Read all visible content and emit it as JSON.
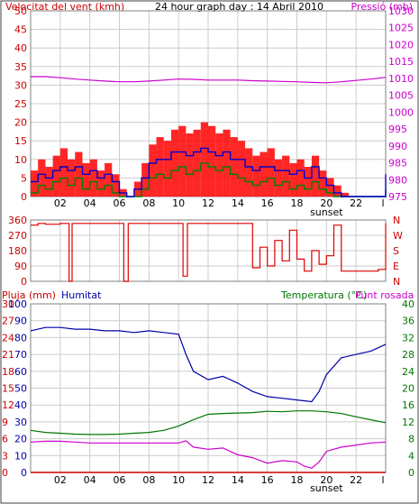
{
  "colors": {
    "wind": "#dd0000",
    "gust_bars": "#ff0000",
    "wind_avg": "#0000cc",
    "wind_min": "#008000",
    "pressure": "#cc00cc",
    "direction": "#dd0000",
    "rain": "#cc0000",
    "humidity": "#0000aa",
    "temperature": "#007700",
    "dewpoint": "#cc00cc",
    "grid": "#cccccc",
    "frame": "#808080"
  },
  "x_ticks": [
    "02",
    "04",
    "06",
    "08",
    "10",
    "12",
    "14",
    "16",
    "18",
    "20",
    "22",
    "l"
  ],
  "sunset_label": "sunset",
  "chart_data": [
    {
      "type": "line",
      "title": "24 hour graph day : 14 Abril 2010",
      "ylabel": "Velocitat del vent (kmh)",
      "ylabel_right": "Pressió (mb)",
      "ylim": [
        0,
        50
      ],
      "yticks": [
        "0",
        "5",
        "10",
        "15",
        "20",
        "25",
        "30",
        "35",
        "40",
        "45",
        "50"
      ],
      "ylim_right": [
        975,
        1030
      ],
      "yticks_right": [
        "975",
        "980",
        "985",
        "990",
        "995",
        "1000",
        "1005",
        "1010",
        "1015",
        "1020",
        "1025",
        "1030"
      ],
      "xlim": [
        0,
        24
      ],
      "grid": true,
      "series": [
        {
          "key": "gust",
          "x": [
            0,
            0.5,
            1,
            1.5,
            2,
            2.5,
            3,
            3.5,
            4,
            4.5,
            5,
            5.5,
            6,
            6.5,
            7,
            7.5,
            8,
            8.5,
            9,
            9.5,
            10,
            10.5,
            11,
            11.5,
            12,
            12.5,
            13,
            13.5,
            14,
            14.5,
            15,
            15.5,
            16,
            16.5,
            17,
            17.5,
            18,
            18.5,
            19,
            19.5,
            20,
            20.5,
            21,
            21.5,
            22,
            22.5,
            23,
            23.5,
            24
          ],
          "y": [
            7,
            10,
            8,
            11,
            13,
            10,
            12,
            9,
            10,
            7,
            9,
            6,
            2,
            0,
            4,
            9,
            14,
            16,
            15,
            18,
            19,
            17,
            18,
            20,
            19,
            17,
            18,
            16,
            15,
            13,
            11,
            12,
            13,
            10,
            11,
            9,
            10,
            8,
            11,
            7,
            5,
            3,
            1,
            0,
            0,
            0,
            0,
            0,
            10
          ]
        },
        {
          "key": "average",
          "x": [
            0,
            0.5,
            1,
            1.5,
            2,
            2.5,
            3,
            3.5,
            4,
            4.5,
            5,
            5.5,
            6,
            6.5,
            7,
            7.5,
            8,
            8.5,
            9,
            9.5,
            10,
            10.5,
            11,
            11.5,
            12,
            12.5,
            13,
            13.5,
            14,
            14.5,
            15,
            15.5,
            16,
            16.5,
            17,
            17.5,
            18,
            18.5,
            19,
            19.5,
            20,
            20.5,
            21,
            21.5,
            22,
            22.5,
            23,
            23.5,
            24
          ],
          "y": [
            4,
            6,
            5,
            7,
            8,
            7,
            8,
            6,
            7,
            5,
            6,
            4,
            1,
            0,
            2,
            5,
            9,
            10,
            10,
            12,
            12,
            11,
            12,
            13,
            12,
            11,
            12,
            10,
            10,
            8,
            7,
            8,
            8,
            7,
            7,
            6,
            7,
            5,
            8,
            5,
            3,
            1,
            0,
            0,
            0,
            0,
            0,
            0,
            6
          ]
        },
        {
          "key": "minimum",
          "x": [
            0,
            0.5,
            1,
            1.5,
            2,
            2.5,
            3,
            3.5,
            4,
            4.5,
            5,
            5.5,
            6,
            6.5,
            7,
            7.5,
            8,
            8.5,
            9,
            9.5,
            10,
            10.5,
            11,
            11.5,
            12,
            12.5,
            13,
            13.5,
            14,
            14.5,
            15,
            15.5,
            16,
            16.5,
            17,
            17.5,
            18,
            18.5,
            19,
            19.5,
            20,
            20.5,
            21,
            21.5,
            22,
            22.5,
            23,
            23.5,
            24
          ],
          "y": [
            1,
            3,
            2,
            4,
            5,
            3,
            5,
            2,
            4,
            2,
            3,
            1,
            0,
            0,
            0,
            2,
            5,
            6,
            5,
            7,
            8,
            6,
            7,
            9,
            8,
            7,
            8,
            6,
            5,
            4,
            3,
            4,
            5,
            3,
            4,
            2,
            3,
            2,
            4,
            2,
            1,
            0,
            0,
            0,
            0,
            0,
            0,
            0,
            2
          ]
        },
        {
          "key": "pressure",
          "axis": "right",
          "x": [
            0,
            1,
            2,
            3,
            4,
            5,
            6,
            7,
            8,
            9,
            10,
            11,
            12,
            13,
            14,
            15,
            16,
            17,
            18,
            19,
            20,
            21,
            22,
            23,
            24
          ],
          "y": [
            1010.5,
            1010.5,
            1010.2,
            1009.8,
            1009.5,
            1009.2,
            1009,
            1009,
            1009.2,
            1009.5,
            1009.8,
            1009.7,
            1009.5,
            1009.5,
            1009.5,
            1009.3,
            1009.2,
            1009.1,
            1009,
            1008.8,
            1008.7,
            1009,
            1009.4,
            1009.8,
            1010.3
          ]
        }
      ]
    },
    {
      "type": "line",
      "ylim": [
        0,
        360
      ],
      "yticks": [
        "0",
        "90",
        "180",
        "270",
        "360"
      ],
      "yticks_right": [
        "N",
        "E",
        "S",
        "W",
        "N"
      ],
      "xlim": [
        0,
        24
      ],
      "grid": true,
      "series": [
        {
          "key": "direction",
          "x": [
            0,
            0.5,
            1,
            2,
            2.6,
            2.8,
            3,
            4,
            5,
            6,
            6.3,
            6.6,
            7,
            8,
            9,
            10,
            10.3,
            10.6,
            11,
            12,
            13,
            14,
            15,
            15.5,
            16,
            16.5,
            17,
            17.5,
            18,
            18.5,
            19,
            19.5,
            20,
            20.5,
            21,
            22,
            23,
            23.5,
            24
          ],
          "y": [
            330,
            340,
            335,
            340,
            0,
            340,
            340,
            340,
            340,
            340,
            0,
            340,
            340,
            340,
            340,
            340,
            30,
            340,
            340,
            340,
            340,
            340,
            80,
            200,
            90,
            240,
            120,
            300,
            130,
            60,
            180,
            100,
            150,
            330,
            60,
            60,
            60,
            70,
            340
          ]
        }
      ]
    },
    {
      "type": "line",
      "ylabel": "Pluja (mm)",
      "ylabel2": "Humitat",
      "ylabel_right": "Temperatura (°C)",
      "ylabel_right2": "Punt rosada",
      "ylim": [
        0,
        30
      ],
      "yticks": [
        "0",
        "3",
        "6",
        "9",
        "12",
        "15",
        "18",
        "21",
        "24",
        "27",
        "30"
      ],
      "yticks2": [
        "0",
        "10",
        "20",
        "30",
        "40",
        "50",
        "60",
        "70",
        "80",
        "90",
        "100"
      ],
      "yticks_right": [
        "0",
        "4",
        "8",
        "12",
        "16",
        "20",
        "24",
        "28",
        "32",
        "36",
        "40"
      ],
      "xlim": [
        0,
        24
      ],
      "grid": true,
      "series": [
        {
          "key": "rain",
          "x": [
            0,
            24
          ],
          "y": [
            0,
            0
          ]
        },
        {
          "key": "humidity",
          "x": [
            0,
            1,
            2,
            3,
            4,
            5,
            6,
            7,
            8,
            9,
            10,
            10.5,
            11,
            12,
            13,
            14,
            15,
            16,
            17,
            18,
            19,
            19.5,
            20,
            21,
            22,
            23,
            24
          ],
          "y": [
            84,
            86,
            86,
            85,
            85,
            84,
            84,
            83,
            84,
            83,
            82,
            70,
            60,
            55,
            57,
            53,
            48,
            45,
            44,
            43,
            42,
            48,
            58,
            68,
            70,
            72,
            76
          ]
        },
        {
          "key": "temperature",
          "axis": "right",
          "x": [
            0,
            1,
            2,
            3,
            4,
            5,
            6,
            7,
            8,
            9,
            10,
            11,
            12,
            13,
            14,
            15,
            16,
            17,
            18,
            19,
            20,
            21,
            22,
            23,
            24
          ],
          "y": [
            10,
            9.5,
            9.3,
            9.1,
            9,
            9,
            9.1,
            9.3,
            9.5,
            10,
            11,
            12.5,
            13.8,
            14,
            14.1,
            14.2,
            14.5,
            14.4,
            14.6,
            14.6,
            14.4,
            14,
            13.2,
            12.5,
            11.8
          ]
        },
        {
          "key": "dewpoint",
          "axis": "right",
          "x": [
            0,
            1,
            2,
            3,
            4,
            5,
            6,
            7,
            8,
            9,
            10,
            10.5,
            11,
            12,
            13,
            14,
            15,
            16,
            17,
            18,
            18.5,
            19,
            19.5,
            20,
            21,
            22,
            23,
            24
          ],
          "y": [
            7.2,
            7.4,
            7.4,
            7.2,
            7,
            7,
            7,
            7,
            7,
            7,
            7,
            7.5,
            6,
            5.5,
            5.8,
            4.2,
            3.5,
            2.2,
            2.8,
            2.5,
            1.5,
            1,
            2.5,
            5,
            6,
            6.5,
            7,
            7.2
          ]
        }
      ]
    }
  ]
}
